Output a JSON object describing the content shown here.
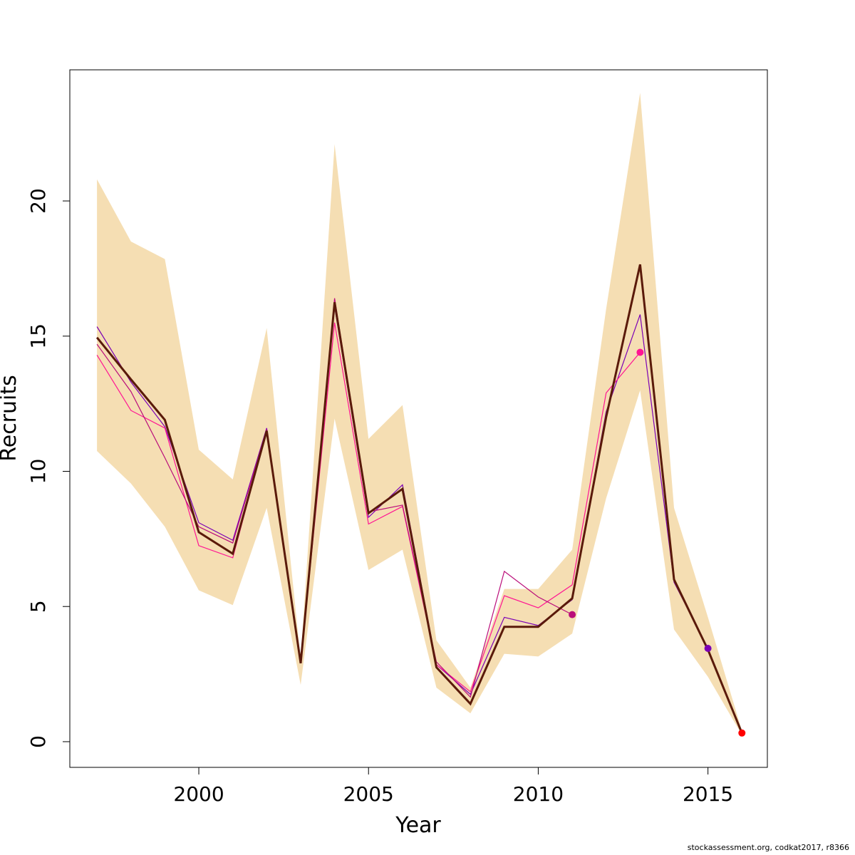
{
  "chart_data": {
    "type": "line",
    "title": "",
    "xlabel": "Year",
    "ylabel": "Recruits",
    "xlim": [
      1996.2,
      2016.75
    ],
    "ylim": [
      -0.95,
      24.85
    ],
    "x_ticks": [
      2000,
      2005,
      2010,
      2015
    ],
    "y_ticks": [
      0,
      5,
      10,
      15,
      20
    ],
    "grid": false,
    "legend": "none",
    "credit": "stockassessment.org, codkat2017, r8366",
    "band": {
      "color": "#f5deb3",
      "x": [
        1997,
        1998,
        1999,
        2000,
        2001,
        2002,
        2003,
        2004,
        2005,
        2006,
        2007,
        2008,
        2009,
        2010,
        2011,
        2012,
        2013,
        2014,
        2015,
        2016
      ],
      "upper": [
        20.8,
        18.5,
        17.85,
        10.8,
        9.7,
        15.3,
        3.05,
        22.1,
        11.2,
        12.45,
        3.75,
        2.0,
        5.65,
        5.65,
        7.1,
        16.0,
        24.0,
        8.65,
        4.6,
        0.4
      ],
      "lower": [
        10.75,
        9.55,
        7.95,
        5.6,
        5.05,
        8.65,
        2.1,
        11.95,
        6.35,
        7.1,
        2.0,
        1.05,
        3.25,
        3.15,
        4.0,
        9.0,
        13.0,
        4.15,
        2.4,
        0.25
      ]
    },
    "series": [
      {
        "color": "#5a1a0a",
        "x": [
          1997,
          1998,
          1999,
          2000,
          2001,
          2002,
          2003,
          2004,
          2005,
          2006,
          2007,
          2008,
          2009,
          2010,
          2011,
          2012,
          2013,
          2014,
          2015,
          2016
        ],
        "values": [
          14.95,
          13.4,
          11.9,
          7.75,
          6.95,
          11.5,
          2.9,
          16.25,
          8.45,
          9.35,
          2.75,
          1.4,
          4.25,
          4.25,
          5.3,
          12.0,
          17.65,
          6.0,
          3.4,
          0.32
        ]
      },
      {
        "color": "#7b00b5",
        "x": [
          1997,
          1998,
          1999,
          2000,
          2001,
          2002,
          2003,
          2004,
          2005,
          2006,
          2007,
          2008,
          2009,
          2010,
          2011,
          2012,
          2013,
          2014,
          2015
        ],
        "values": [
          15.35,
          13.3,
          11.65,
          8.1,
          7.45,
          11.6,
          2.95,
          16.1,
          8.3,
          9.5,
          2.85,
          1.75,
          4.6,
          4.3,
          5.25,
          12.2,
          15.8,
          5.9,
          3.45
        ],
        "end_marker": true
      },
      {
        "color": "#ff1493",
        "x": [
          1997,
          1998,
          1999,
          2000,
          2001,
          2002,
          2003,
          2004,
          2005,
          2006,
          2007,
          2008,
          2009,
          2010,
          2011,
          2012,
          2013
        ],
        "values": [
          14.3,
          12.25,
          11.6,
          7.25,
          6.8,
          11.5,
          2.9,
          15.5,
          8.05,
          8.7,
          2.85,
          1.85,
          5.4,
          4.95,
          5.8,
          12.9,
          14.4
        ],
        "end_marker": true
      },
      {
        "color": "#ba0e7a",
        "x": [
          1997,
          1998,
          1999,
          2000,
          2001,
          2002,
          2003,
          2004,
          2005,
          2006,
          2007,
          2008,
          2009,
          2010,
          2011
        ],
        "values": [
          14.7,
          12.95,
          10.5,
          7.95,
          7.35,
          11.55,
          2.95,
          16.4,
          8.5,
          8.75,
          2.95,
          1.65,
          6.3,
          5.35,
          4.7
        ],
        "end_marker": true
      }
    ],
    "final_point": {
      "x": 2016,
      "value": 0.32,
      "color": "#ff0000"
    }
  }
}
